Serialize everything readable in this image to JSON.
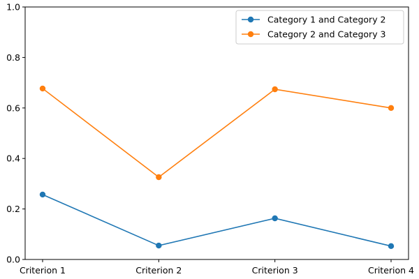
{
  "chart_data": {
    "type": "line",
    "categories": [
      "Criterion 1",
      "Criterion 2",
      "Criterion 3",
      "Criterion 4"
    ],
    "series": [
      {
        "name": "Category 1 and Category 2",
        "values": [
          0.257,
          0.055,
          0.163,
          0.053
        ],
        "color": "#1f77b4"
      },
      {
        "name": "Category 2 and Category 3",
        "values": [
          0.677,
          0.326,
          0.674,
          0.6
        ],
        "color": "#ff7f0e"
      }
    ],
    "ylim": [
      0,
      1.0
    ],
    "yticks": [
      "0.0",
      "0.2",
      "0.4",
      "0.6",
      "0.8",
      "1.0"
    ],
    "xlabel": "",
    "ylabel": "",
    "grid": false,
    "legend": "top-right"
  }
}
